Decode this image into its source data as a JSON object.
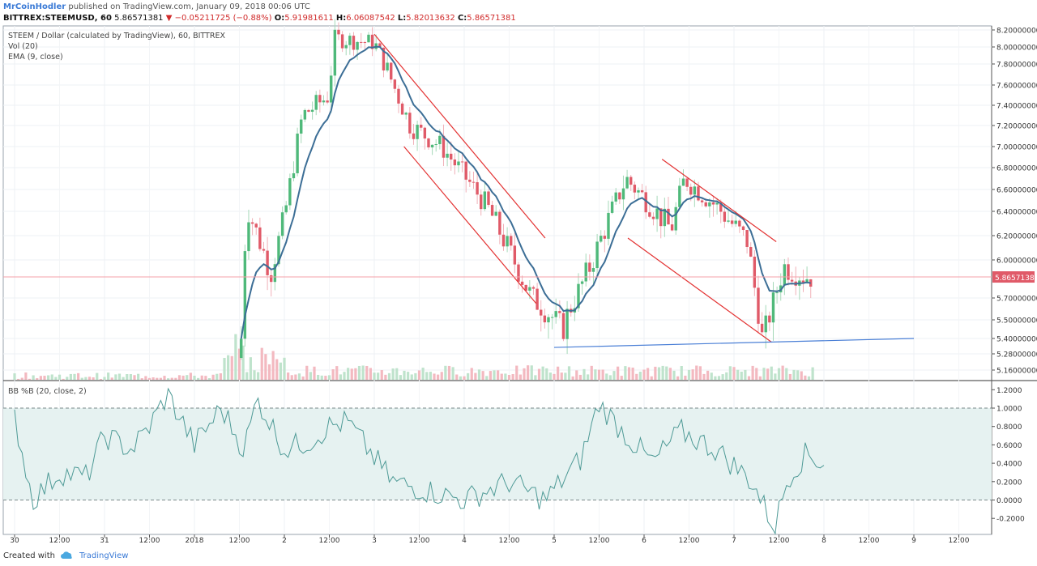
{
  "header": {
    "author": "MrCoinHodler",
    "published": " published on TradingView.com, January 09, 2018 00:06 UTC",
    "symbol": "BITTREX:STEEMUSD, 60",
    "last": "5.86571381",
    "change": "▼ −0.05211725 (−0.88%)",
    "o_label": "O:",
    "o": "5.91981611",
    "h_label": "H:",
    "h": "6.06087542",
    "l_label": "L:",
    "l": "5.82013632",
    "c_label": "C:",
    "c": "5.86571381"
  },
  "legend": {
    "title": "STEEM / Dollar (calculated by TradingView), 60, BITTREX",
    "vol": "Vol (20)",
    "ema": "EMA (9, close)",
    "bb": "BB %B (20, close, 2)"
  },
  "footer": {
    "created": "Created with",
    "brand": "TradingView"
  },
  "colors": {
    "up": "#4fb97a",
    "down": "#e05a68",
    "ema": "#3c6e96",
    "trend": "#e33232",
    "support": "#4a7fd6",
    "bb": "#4e9a96"
  },
  "chart_data": [
    {
      "type": "candlestick",
      "title": "STEEM / Dollar (calculated by TradingView), 60, BITTREX",
      "x_ticks": [
        "30",
        "12:00",
        "31",
        "12:00",
        "2018",
        "12:00",
        "2",
        "12:00",
        "3",
        "12:00",
        "4",
        "12:00",
        "5",
        "12:00",
        "6",
        "12:00",
        "7",
        "12:00",
        "8",
        "12:00",
        "9",
        "12:00"
      ],
      "y_ticks": [
        "8.20000000",
        "8.00000000",
        "7.80000000",
        "7.60000000",
        "7.40000000",
        "7.20000000",
        "7.00000000",
        "6.80000000",
        "6.60000000",
        "6.40000000",
        "6.20000000",
        "6.00000000",
        "5.70000000",
        "5.50000000",
        "5.40000000",
        "5.28000000",
        "5.16000000"
      ],
      "last_price_label": "5.86571381",
      "ema_period": 9,
      "ohlc_anchors": [
        {
          "day": 2.52,
          "close": 5.4
        },
        {
          "day": 2.58,
          "close": 6.45
        },
        {
          "day": 2.85,
          "close": 5.9
        },
        {
          "day": 3.0,
          "close": 6.35
        },
        {
          "day": 3.2,
          "close": 7.3
        },
        {
          "day": 3.5,
          "close": 7.5
        },
        {
          "day": 3.55,
          "close": 8.1
        },
        {
          "day": 4.0,
          "close": 8.05
        },
        {
          "day": 4.4,
          "close": 7.2
        },
        {
          "day": 4.75,
          "close": 7.0
        },
        {
          "day": 5.25,
          "close": 6.45
        },
        {
          "day": 5.75,
          "close": 5.7
        },
        {
          "day": 6.08,
          "close": 5.45
        },
        {
          "day": 6.4,
          "close": 5.95
        },
        {
          "day": 6.8,
          "close": 6.7
        },
        {
          "day": 7.3,
          "close": 6.25
        },
        {
          "day": 7.45,
          "close": 6.7
        },
        {
          "day": 7.8,
          "close": 6.45
        },
        {
          "day": 8.15,
          "close": 6.15
        },
        {
          "day": 8.32,
          "close": 5.35
        },
        {
          "day": 8.55,
          "close": 5.95
        },
        {
          "day": 8.8,
          "close": 5.87
        }
      ],
      "trendlines": [
        {
          "name": "channel-1-upper",
          "from": {
            "day": 4.0,
            "price": 8.15
          },
          "to": {
            "day": 5.9,
            "price": 6.18
          }
        },
        {
          "name": "channel-1-lower",
          "from": {
            "day": 4.33,
            "price": 7.0
          },
          "to": {
            "day": 5.8,
            "price": 5.65
          }
        },
        {
          "name": "channel-2-upper",
          "from": {
            "day": 7.2,
            "price": 6.88
          },
          "to": {
            "day": 8.47,
            "price": 6.15
          }
        },
        {
          "name": "channel-2-lower",
          "from": {
            "day": 6.82,
            "price": 6.18
          },
          "to": {
            "day": 8.42,
            "price": 5.37
          }
        },
        {
          "name": "support",
          "from": {
            "day": 6.0,
            "price": 5.33
          },
          "to": {
            "day": 10.0,
            "price": 5.4
          }
        }
      ]
    },
    {
      "type": "line",
      "title": "BB %B (20, close, 2)",
      "y_ticks": [
        "1.2000",
        "1.0000",
        "0.8000",
        "0.6000",
        "0.4000",
        "0.2000",
        "0.0000",
        "-0.2000"
      ],
      "band": [
        0,
        1
      ],
      "series_anchors": [
        {
          "day": 0.0,
          "v": 0.9
        },
        {
          "day": 0.2,
          "v": 0.0
        },
        {
          "day": 0.5,
          "v": 0.3
        },
        {
          "day": 0.8,
          "v": 0.25
        },
        {
          "day": 1.0,
          "v": 0.7
        },
        {
          "day": 1.3,
          "v": 0.55
        },
        {
          "day": 1.5,
          "v": 0.8
        },
        {
          "day": 1.7,
          "v": 1.15
        },
        {
          "day": 2.0,
          "v": 0.6
        },
        {
          "day": 2.3,
          "v": 1.0
        },
        {
          "day": 2.55,
          "v": 0.55
        },
        {
          "day": 2.7,
          "v": 1.1
        },
        {
          "day": 3.0,
          "v": 0.55
        },
        {
          "day": 3.3,
          "v": 0.65
        },
        {
          "day": 3.5,
          "v": 0.8
        },
        {
          "day": 3.7,
          "v": 0.85
        },
        {
          "day": 4.2,
          "v": 0.2
        },
        {
          "day": 4.6,
          "v": 0.1
        },
        {
          "day": 5.0,
          "v": 0.0
        },
        {
          "day": 5.5,
          "v": 0.2
        },
        {
          "day": 5.9,
          "v": 0.0
        },
        {
          "day": 6.3,
          "v": 0.45
        },
        {
          "day": 6.5,
          "v": 1.05
        },
        {
          "day": 6.8,
          "v": 0.7
        },
        {
          "day": 7.1,
          "v": 0.4
        },
        {
          "day": 7.4,
          "v": 0.75
        },
        {
          "day": 7.8,
          "v": 0.55
        },
        {
          "day": 8.2,
          "v": 0.2
        },
        {
          "day": 8.45,
          "v": -0.3
        },
        {
          "day": 8.6,
          "v": 0.25
        },
        {
          "day": 8.8,
          "v": 0.5
        },
        {
          "day": 9.0,
          "v": 0.4
        }
      ]
    }
  ]
}
